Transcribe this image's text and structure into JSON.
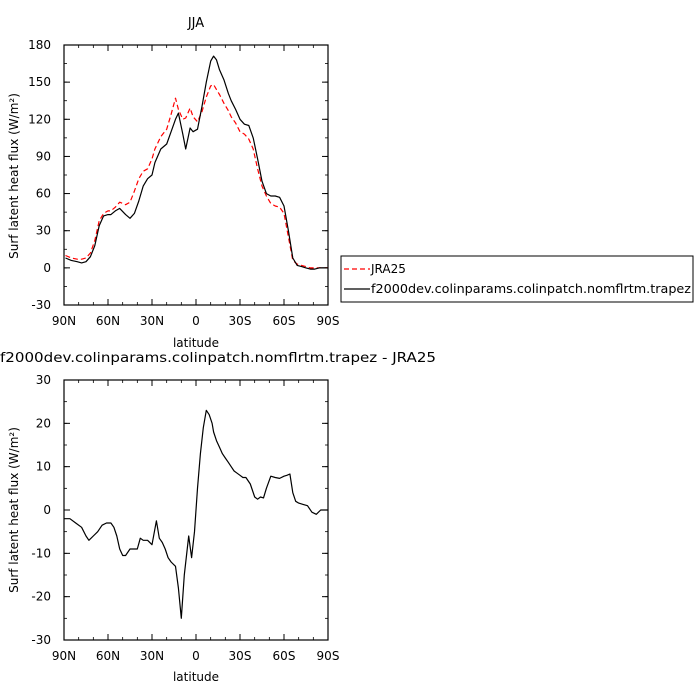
{
  "chart_data": [
    {
      "type": "line",
      "title": "JJA",
      "xlabel": "latitude",
      "ylabel": "Surf latent heat flux (W/m²)",
      "x_ticks": [
        "90N",
        "60N",
        "30N",
        "0",
        "30S",
        "60S",
        "90S"
      ],
      "xlim": [
        -90,
        90
      ],
      "ylim": [
        -30,
        180
      ],
      "y_ticks": [
        "-30",
        "0",
        "30",
        "60",
        "90",
        "120",
        "150",
        "180"
      ],
      "legend_position": "right",
      "series": [
        {
          "name": "JRA25",
          "color": "#ff0000",
          "dash": "dashed",
          "x": [
            -89,
            -85,
            -81,
            -78,
            -75,
            -72,
            -69,
            -66,
            -63,
            -60,
            -58,
            -55,
            -52,
            -48,
            -45,
            -42,
            -39,
            -36,
            -33,
            -30,
            -28,
            -24,
            -20,
            -17,
            -14,
            -12,
            -9,
            -7,
            -4,
            -2,
            1,
            4,
            7,
            10,
            12,
            14,
            16,
            19,
            22,
            24,
            27,
            30,
            33,
            36,
            39,
            42,
            45,
            48,
            51,
            54,
            57,
            60,
            63,
            66,
            69,
            72,
            75,
            78,
            81,
            84,
            87,
            90
          ],
          "y": [
            10,
            8,
            7,
            7,
            8,
            12,
            22,
            38,
            44,
            46,
            46,
            49,
            53,
            51,
            53,
            62,
            72,
            78,
            80,
            88,
            96,
            106,
            112,
            124,
            137,
            128,
            120,
            121,
            129,
            122,
            118,
            126,
            138,
            147,
            148,
            144,
            140,
            133,
            127,
            122,
            117,
            110,
            108,
            104,
            96,
            80,
            66,
            58,
            52,
            50,
            49,
            44,
            25,
            6,
            3,
            2,
            1,
            0,
            0,
            0,
            0,
            0
          ]
        },
        {
          "name": "f2000dev.colinparams.colinpatch.nomflrtm.trapez",
          "color": "#000000",
          "dash": "solid",
          "x": [
            -89,
            -85,
            -81,
            -78,
            -75,
            -72,
            -69,
            -66,
            -63,
            -60,
            -58,
            -55,
            -52,
            -48,
            -45,
            -42,
            -39,
            -36,
            -33,
            -30,
            -28,
            -24,
            -20,
            -17,
            -14,
            -12,
            -9,
            -7,
            -4,
            -2,
            1,
            4,
            7,
            10,
            12,
            14,
            16,
            19,
            22,
            24,
            27,
            30,
            33,
            36,
            39,
            42,
            45,
            48,
            51,
            54,
            57,
            60,
            63,
            66,
            69,
            72,
            75,
            78,
            81,
            84,
            87,
            90
          ],
          "y": [
            8,
            6,
            5,
            4,
            5,
            9,
            18,
            34,
            42,
            43,
            43,
            46,
            48,
            43,
            40,
            44,
            54,
            66,
            72,
            75,
            85,
            96,
            100,
            110,
            120,
            125,
            108,
            96,
            113,
            110,
            112,
            130,
            150,
            167,
            171,
            168,
            160,
            152,
            141,
            135,
            128,
            120,
            116,
            115,
            105,
            88,
            70,
            60,
            58,
            58,
            57,
            50,
            30,
            8,
            2,
            1,
            0,
            -1,
            -1,
            0,
            0,
            0
          ]
        }
      ]
    },
    {
      "type": "line",
      "title": "f2000dev.colinparams.colinpatch.nomflrtm.trapez - JRA25",
      "xlabel": "latitude",
      "ylabel": "Surf latent heat flux (W/m²)",
      "x_ticks": [
        "90N",
        "60N",
        "30N",
        "0",
        "30S",
        "60S",
        "90S"
      ],
      "xlim": [
        -90,
        90
      ],
      "ylim": [
        -30,
        30
      ],
      "y_ticks": [
        "-30",
        "-20",
        "-10",
        "0",
        "10",
        "20",
        "30"
      ],
      "series": [
        {
          "color": "#000000",
          "dash": "solid",
          "x": [
            -90,
            -86,
            -82,
            -78,
            -75,
            -73,
            -70,
            -67,
            -64,
            -61,
            -58,
            -56,
            -54,
            -52,
            -50,
            -48,
            -45,
            -42,
            -40,
            -38,
            -36,
            -33,
            -30,
            -27,
            -25,
            -23,
            -21,
            -19,
            -17,
            -14,
            -12,
            -10,
            -8,
            -5,
            -3,
            -1,
            1,
            3,
            5,
            7,
            9,
            11,
            12,
            14,
            16,
            18,
            20,
            22,
            24,
            26,
            28,
            30,
            32,
            34,
            37,
            40,
            42,
            44,
            46,
            48,
            51,
            54,
            57,
            60,
            62,
            64,
            66,
            68,
            70,
            73,
            76,
            79,
            82,
            85,
            88,
            90
          ],
          "y": [
            -2,
            -2,
            -3,
            -4,
            -6,
            -7,
            -6,
            -5,
            -3.5,
            -3,
            -3,
            -4,
            -6,
            -9,
            -10.5,
            -10.5,
            -9,
            -9,
            -9,
            -6.5,
            -7,
            -7,
            -8,
            -2.5,
            -6.5,
            -7.5,
            -9,
            -11,
            -12,
            -13,
            -18,
            -25,
            -15,
            -6,
            -11,
            -5,
            5,
            13,
            19,
            23,
            22,
            20,
            18,
            16,
            14.5,
            13,
            12,
            11,
            10,
            9,
            8.5,
            8,
            7.5,
            7.5,
            6,
            3,
            2.5,
            3,
            2.8,
            5,
            7.8,
            7.5,
            7.3,
            7.8,
            8,
            8.3,
            4,
            2,
            1.6,
            1.3,
            1,
            -0.5,
            -1,
            0,
            0,
            0
          ]
        }
      ]
    }
  ]
}
